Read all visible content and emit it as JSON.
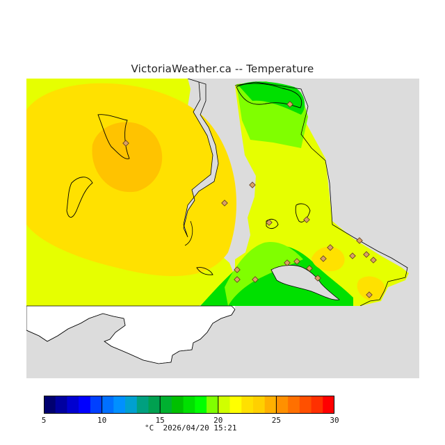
{
  "header": {
    "title": "VictoriaWeather.ca -- Temperature"
  },
  "legend": {
    "min": 5,
    "max": 30,
    "tick_labels": [
      "5",
      "10",
      "15",
      "20",
      "25",
      "30"
    ],
    "tick_values": [
      5,
      10,
      15,
      20,
      25,
      30
    ],
    "colors": [
      "#000070",
      "#0000a0",
      "#0000d0",
      "#0000ff",
      "#0040ff",
      "#0070ff",
      "#0090ff",
      "#00a0d0",
      "#00a080",
      "#00a050",
      "#00b030",
      "#00c000",
      "#00e000",
      "#00ff00",
      "#80ff00",
      "#d0ff00",
      "#ffff00",
      "#ffe000",
      "#ffd000",
      "#ffb000",
      "#ff9000",
      "#ff7000",
      "#ff5000",
      "#ff3000",
      "#ff0000"
    ],
    "unit": "°C",
    "timestamp": "2026/04/20 15:21"
  },
  "map": {
    "colors": {
      "land": "#dcdcdc",
      "no_data": "#ffffff",
      "outline": "#000000",
      "t22": "#e6ff00",
      "t23": "#ffe100",
      "t24": "#ffc300",
      "t21": "#80ff00",
      "t20": "#00e000"
    },
    "stations_count": 20
  }
}
